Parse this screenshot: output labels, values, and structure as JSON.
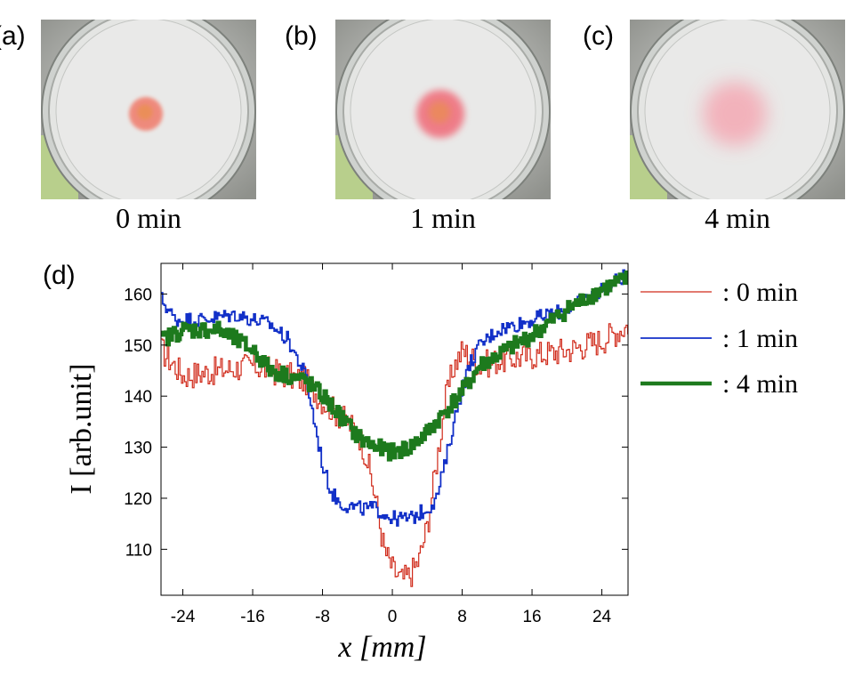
{
  "panels": [
    {
      "letter": "(a)",
      "caption": "0 min",
      "stain_color": "#f07a6a",
      "stain_radius": 19,
      "stain_blur": 2
    },
    {
      "letter": "(b)",
      "caption": "1 min",
      "stain_color": "#f06a78",
      "stain_radius": 27,
      "stain_blur": 4
    },
    {
      "letter": "(c)",
      "caption": "4 min",
      "stain_color": "#f4a9b4",
      "stain_radius": 36,
      "stain_blur": 10
    }
  ],
  "chart_panel_letter": "(d)",
  "chart_data": {
    "type": "line",
    "xlabel": "x [mm]",
    "ylabel": "I [arb.unit]",
    "xlim": [
      -26.5,
      27
    ],
    "ylim": [
      101,
      166
    ],
    "xticks": [
      -24,
      -16,
      -8,
      0,
      8,
      16,
      24
    ],
    "yticks": [
      110,
      120,
      130,
      140,
      150,
      160
    ],
    "legend_position": "right",
    "series": [
      {
        "name": ": 0 min",
        "color": "#d02a1a",
        "stroke_width": 1.2,
        "noise": 2.8,
        "points": [
          [
            -26.5,
            149
          ],
          [
            -24,
            144
          ],
          [
            -20,
            145
          ],
          [
            -16,
            146
          ],
          [
            -12,
            144
          ],
          [
            -10,
            143
          ],
          [
            -8,
            139
          ],
          [
            -6,
            136
          ],
          [
            -4,
            133
          ],
          [
            -3,
            128
          ],
          [
            -2,
            120
          ],
          [
            -1,
            110
          ],
          [
            0,
            106
          ],
          [
            1,
            104
          ],
          [
            2,
            105
          ],
          [
            3,
            108
          ],
          [
            4,
            115
          ],
          [
            5,
            127
          ],
          [
            6,
            139
          ],
          [
            7,
            146
          ],
          [
            8,
            149
          ],
          [
            10,
            146
          ],
          [
            12,
            147
          ],
          [
            16,
            148
          ],
          [
            20,
            149
          ],
          [
            24,
            151
          ],
          [
            27,
            154
          ]
        ]
      },
      {
        "name": ": 1 min",
        "color": "#1230c8",
        "stroke_width": 1.8,
        "noise": 1.5,
        "points": [
          [
            -26.5,
            159
          ],
          [
            -25,
            155
          ],
          [
            -22,
            155
          ],
          [
            -18,
            156
          ],
          [
            -14,
            154
          ],
          [
            -12,
            151
          ],
          [
            -10,
            144
          ],
          [
            -9,
            135
          ],
          [
            -8,
            126
          ],
          [
            -7,
            121
          ],
          [
            -6,
            119
          ],
          [
            -4,
            118
          ],
          [
            -2,
            118
          ],
          [
            0,
            116
          ],
          [
            2,
            116
          ],
          [
            4,
            118
          ],
          [
            5,
            120
          ],
          [
            6,
            127
          ],
          [
            7,
            135
          ],
          [
            8,
            142
          ],
          [
            9,
            147
          ],
          [
            10,
            150
          ],
          [
            12,
            153
          ],
          [
            16,
            155
          ],
          [
            20,
            157
          ],
          [
            24,
            161
          ],
          [
            27,
            164
          ]
        ]
      },
      {
        "name": ": 4 min",
        "color": "#1d7a1d",
        "stroke_width": 4.5,
        "noise": 1.6,
        "points": [
          [
            -26.5,
            151
          ],
          [
            -24,
            153
          ],
          [
            -20,
            153
          ],
          [
            -16,
            149
          ],
          [
            -14,
            145
          ],
          [
            -12,
            144
          ],
          [
            -10,
            143
          ],
          [
            -8,
            140
          ],
          [
            -6,
            136
          ],
          [
            -4,
            132
          ],
          [
            -2,
            130
          ],
          [
            0,
            129
          ],
          [
            2,
            130
          ],
          [
            4,
            133
          ],
          [
            6,
            137
          ],
          [
            8,
            141
          ],
          [
            10,
            146
          ],
          [
            12,
            148
          ],
          [
            16,
            152
          ],
          [
            20,
            157
          ],
          [
            24,
            161
          ],
          [
            27,
            163
          ]
        ]
      }
    ]
  }
}
